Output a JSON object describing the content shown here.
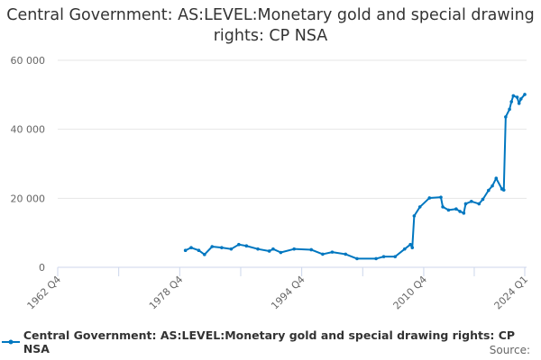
{
  "chart_data": {
    "type": "line",
    "title": "Central Government: AS:LEVEL:Monetary gold and special drawing rights: CP NSA",
    "xlabel": "",
    "ylabel": "",
    "x_ticks": [
      "1962 Q4",
      "1978 Q4",
      "1994 Q4",
      "2010 Q4",
      "2024 Q1"
    ],
    "y_ticks": [
      "0",
      "20 000",
      "40 000",
      "60 000"
    ],
    "ylim": [
      0,
      60000
    ],
    "grid": true,
    "legend_position": "bottom",
    "series": [
      {
        "name": "Central Government: AS:LEVEL:Monetary gold and special drawing rights: CP NSA",
        "color": "#0077c0",
        "x": [
          "1979 Q3",
          "1980 Q2",
          "1981 Q2",
          "1982 Q1",
          "1983 Q1",
          "1984 Q2",
          "1985 Q3",
          "1986 Q3",
          "1987 Q3",
          "1989 Q1",
          "1990 Q3",
          "1991 Q1",
          "1992 Q1",
          "1993 Q4",
          "1996 Q1",
          "1997 Q3",
          "1998 Q4",
          "2000 Q3",
          "2002 Q1",
          "2004 Q3",
          "2005 Q3",
          "2007 Q1",
          "2008 Q2",
          "2009 Q1",
          "2009 Q2",
          "2009 Q3",
          "2010 Q2",
          "2011 Q3",
          "2013 Q1",
          "2013 Q2",
          "2014 Q1",
          "2015 Q1",
          "2015 Q3",
          "2016 Q1",
          "2016 Q2",
          "2017 Q1",
          "2018 Q1",
          "2018 Q3",
          "2019 Q2",
          "2019 Q4",
          "2020 Q2",
          "2021 Q1",
          "2021 Q2",
          "2021 Q3",
          "2022 Q1",
          "2022 Q2",
          "2022 Q3",
          "2023 Q1",
          "2023 Q2",
          "2023 Q3",
          "2024 Q1"
        ],
        "values": [
          4900,
          5700,
          4900,
          3700,
          6000,
          5700,
          5300,
          6600,
          6200,
          5300,
          4700,
          5300,
          4300,
          5300,
          5100,
          3800,
          4400,
          3800,
          2500,
          2500,
          3100,
          3100,
          5300,
          6600,
          5700,
          14900,
          17500,
          20100,
          20300,
          17500,
          16600,
          16900,
          16200,
          15700,
          18400,
          19100,
          18400,
          19700,
          22300,
          23600,
          25800,
          22700,
          22400,
          43600,
          45800,
          48000,
          49700,
          49300,
          47500,
          48800,
          50100
        ]
      }
    ]
  },
  "source_label": "Source:"
}
